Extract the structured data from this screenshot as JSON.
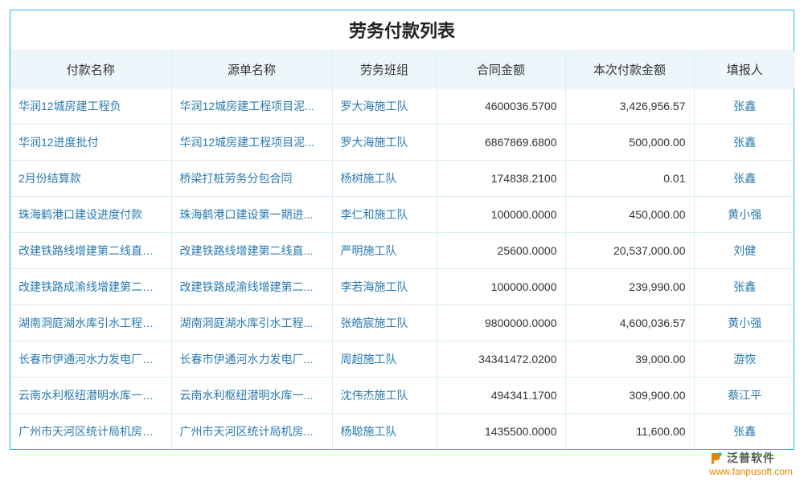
{
  "title": "劳务付款列表",
  "columns": [
    "付款名称",
    "源单名称",
    "劳务班组",
    "合同金额",
    "本次付款金额",
    "填报人"
  ],
  "rows": [
    {
      "pay": "华润12城房建工程负",
      "src": "华润12城房建工程项目泥...",
      "team": "罗大海施工队",
      "contract": "4600036.5700",
      "amount": "3,426,956.57",
      "reporter": "张鑫"
    },
    {
      "pay": "华润12进度批付",
      "src": "华润12城房建工程项目泥...",
      "team": "罗大海施工队",
      "contract": "6867869.6800",
      "amount": "500,000.00",
      "reporter": "张鑫"
    },
    {
      "pay": "2月份结算款",
      "src": "桥梁打桩劳务分包合同",
      "team": "杨树施工队",
      "contract": "174838.2100",
      "amount": "0.01",
      "reporter": "张鑫"
    },
    {
      "pay": "珠海鹤港口建设进度付款",
      "src": "珠海鹤港口建设第一期进...",
      "team": "李仁和施工队",
      "contract": "100000.0000",
      "amount": "450,000.00",
      "reporter": "黄小强"
    },
    {
      "pay": "改建铁路线增建第二线直通...",
      "src": "改建铁路线增建第二线直...",
      "team": "严明施工队",
      "contract": "25600.0000",
      "amount": "20,537,000.00",
      "reporter": "刘健"
    },
    {
      "pay": "改建铁路成渝线增建第二直...",
      "src": "改建铁路成渝线增建第二...",
      "team": "李若海施工队",
      "contract": "100000.0000",
      "amount": "239,990.00",
      "reporter": "张鑫"
    },
    {
      "pay": "湖南洞庭湖水库引水工程施...",
      "src": "湖南洞庭湖水库引水工程...",
      "team": "张皓宸施工队",
      "contract": "9800000.0000",
      "amount": "4,600,036.57",
      "reporter": "黄小强"
    },
    {
      "pay": "长春市伊通河水力发电厂改...",
      "src": "长春市伊通河水力发电厂...",
      "team": "周超施工队",
      "contract": "3434147​2.0200",
      "amount": "39,000.00",
      "reporter": "游恢"
    },
    {
      "pay": "云南水利枢纽潜明水库一期...",
      "src": "云南水利枢纽潜明水库一...",
      "team": "沈伟杰施工队",
      "contract": "494341.1700",
      "amount": "309,900.00",
      "reporter": "蔡江平"
    },
    {
      "pay": "广州市天河区统计局机房改...",
      "src": "广州市天河区统计局机房...",
      "team": "杨聪施工队",
      "contract": "1435500.0000",
      "amount": "11,600.00",
      "reporter": "张鑫"
    }
  ],
  "rows_fixed": [
    {
      "pay": "华润12城房建工程负",
      "src": "华润12城房建工程项目泥...",
      "team": "罗大海施工队",
      "contract": "4600036.5700",
      "amount": "3,426,956.57",
      "reporter": "张鑫"
    },
    {
      "pay": "华润12进度批付",
      "src": "华润12城房建工程项目泥...",
      "team": "罗大海施工队",
      "contract": "6867869.6800",
      "amount": "500,000.00",
      "reporter": "张鑫"
    },
    {
      "pay": "2月份结算款",
      "src": "桥梁打桩劳务分包合同",
      "team": "杨树施工队",
      "contract": "174838.2100",
      "amount": "0.01",
      "reporter": "张鑫"
    },
    {
      "pay": "珠海鹤港口建设进度付款",
      "src": "珠海鹤港口建设第一期进...",
      "team": "李仁和施工队",
      "contract": "100000.0000",
      "amount": "450,000.00",
      "reporter": "黄小强"
    },
    {
      "pay": "改建铁路线增建第二线直通...",
      "src": "改建铁路线增建第二线直...",
      "team": "严明施工队",
      "contract": "25600.0000",
      "amount": "20,537,000.00",
      "reporter": "刘健"
    },
    {
      "pay": "改建铁路成渝线增建第二直...",
      "src": "改建铁路成渝线增建第二...",
      "team": "李若海施工队",
      "contract": "100000.0000",
      "amount": "239,990.00",
      "reporter": "张鑫"
    },
    {
      "pay": "湖南洞庭湖水库引水工程施...",
      "src": "湖南洞庭湖水库引水工程...",
      "team": "张皓宸施工队",
      "contract": "9800000.0000",
      "amount": "4,600,036.57",
      "reporter": "黄小强"
    },
    {
      "pay": "长春市伊通河水力发电厂改...",
      "src": "长春市伊通河水力发电厂...",
      "team": "周超施工队",
      "contract": "34341472.0200",
      "amount": "39,000.00",
      "reporter": "游恢"
    },
    {
      "pay": "云南水利枢纽潜明水库一期...",
      "src": "云南水利枢纽潜明水库一...",
      "team": "沈伟杰施工队",
      "contract": "494341.1700",
      "amount": "309,900.00",
      "reporter": "蔡江平"
    },
    {
      "pay": "广州市天河区统计局机房改...",
      "src": "广州市天河区统计局机房...",
      "team": "杨聪施工队",
      "contract": "1435500.0000",
      "amount": "11,600.00",
      "reporter": "张鑫"
    }
  ],
  "brand": {
    "name": "泛普软件",
    "url": "www.fanpusoft.com"
  },
  "colors": {
    "border": "#29b6e8",
    "header_bg": "#edf6fb",
    "grid": "#d9ecf5",
    "link": "#2a7ab0",
    "brand_url": "#e08a00"
  }
}
